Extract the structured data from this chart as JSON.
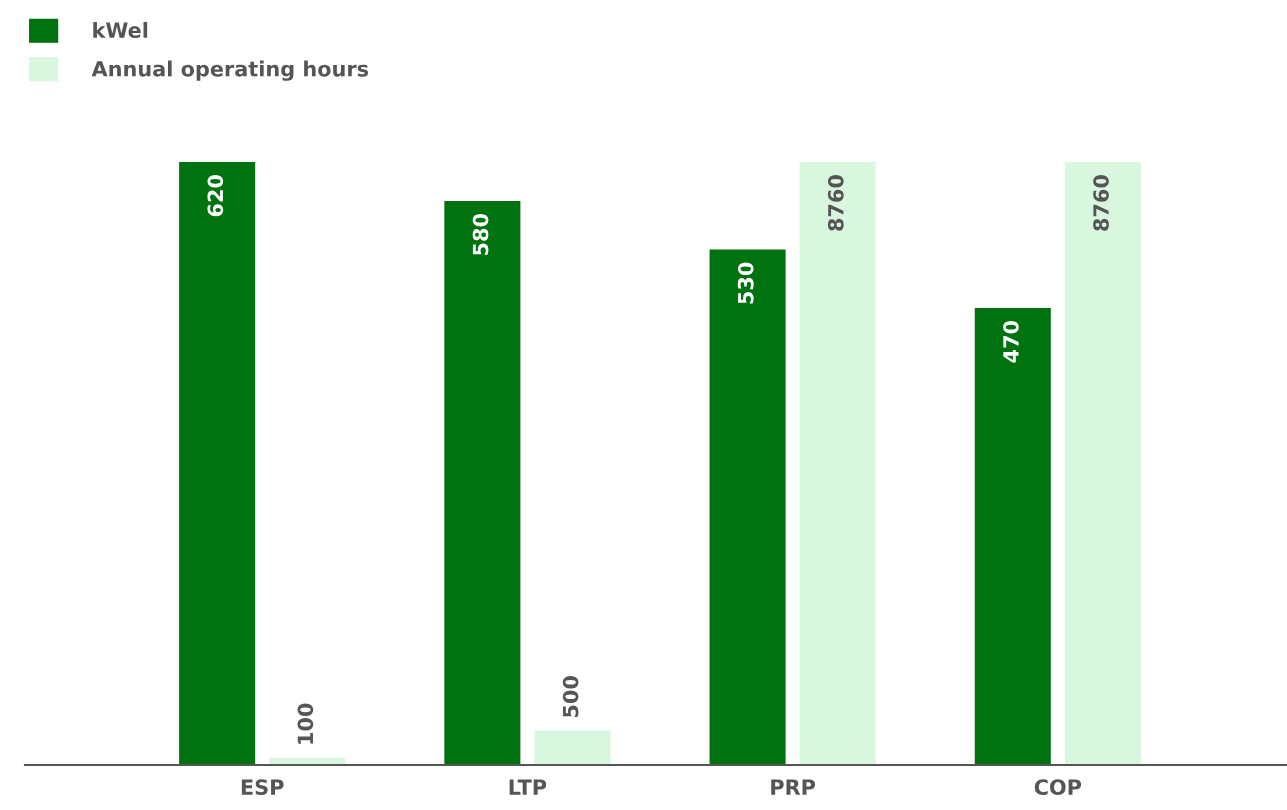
{
  "chart_data": {
    "type": "bar",
    "categories": [
      "ESP",
      "LTP",
      "PRP",
      "COP"
    ],
    "series": [
      {
        "name": "kWel",
        "color": "#007210",
        "values": [
          620,
          580,
          530,
          470
        ]
      },
      {
        "name": "Annual operating hours",
        "color": "#d9f7df",
        "values": [
          100,
          500,
          8760,
          8760
        ],
        "axis": "y2"
      }
    ],
    "ylim": [
      0,
      620
    ],
    "y2lim": [
      0,
      8760
    ],
    "tick_labels": "x",
    "data_labels": true,
    "legend": "top left",
    "grid": false
  }
}
